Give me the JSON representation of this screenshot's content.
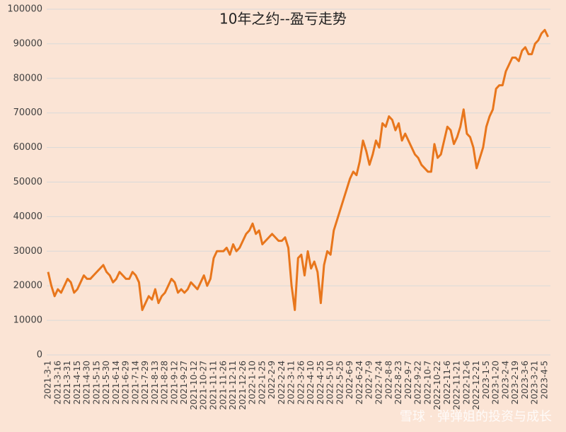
{
  "chart_data": {
    "type": "line",
    "title": "10年之约--盈亏走势",
    "watermark": "雪球 · 弹弹姐的投资与成长",
    "categories": [
      "2021-3-1",
      null,
      null,
      "2021-3-16",
      null,
      null,
      "2021-3-31",
      null,
      null,
      "2021-4-15",
      null,
      null,
      "2021-4-30",
      null,
      null,
      "2021-5-15",
      null,
      null,
      "2021-5-30",
      null,
      null,
      "2021-6-14",
      null,
      null,
      "2021-6-29",
      null,
      null,
      "2021-7-14",
      null,
      null,
      "2021-7-29",
      null,
      null,
      "2021-8-13",
      null,
      null,
      "2021-8-28",
      null,
      null,
      "2021-9-12",
      null,
      null,
      "2021-9-27",
      null,
      null,
      "2021-10-12",
      null,
      null,
      "2021-10-27",
      null,
      null,
      "2021-11-11",
      null,
      null,
      "2021-11-26",
      null,
      null,
      "2021-12-11",
      null,
      null,
      "2021-12-26",
      null,
      null,
      "2022-1-10",
      null,
      null,
      "2022-1-25",
      null,
      null,
      "2022-2-9",
      null,
      null,
      "2022-2-24",
      null,
      null,
      "2022-3-11",
      null,
      null,
      "2022-3-26",
      null,
      null,
      "2022-4-10",
      null,
      null,
      "2022-4-25",
      null,
      null,
      "2022-5-10",
      null,
      null,
      "2022-5-25",
      null,
      null,
      "2022-6-9",
      null,
      null,
      "2022-6-24",
      null,
      null,
      "2022-7-9",
      null,
      null,
      "2022-7-24",
      null,
      null,
      "2022-8-8",
      null,
      null,
      "2022-8-23",
      null,
      null,
      "2022-9-7",
      null,
      null,
      "2022-9-22",
      null,
      null,
      "2022-10-7",
      null,
      null,
      "2022-10-22",
      null,
      null,
      "2022-11-6",
      null,
      null,
      "2022-11-21",
      null,
      null,
      "2022-12-6",
      null,
      null,
      "2022-12-21",
      null,
      null,
      "2023-1-5",
      null,
      null,
      "2023-1-20",
      null,
      null,
      "2023-2-4",
      null,
      null,
      "2023-2-19",
      null,
      null,
      "2023-3-6",
      null,
      null,
      "2023-3-21",
      null,
      null,
      "2023-4-5",
      null
    ],
    "series": [
      {
        "color": "#e8761c",
        "values": [
          24000,
          20000,
          17000,
          19000,
          18000,
          20000,
          22000,
          21000,
          18000,
          19000,
          21000,
          23000,
          22000,
          22000,
          23000,
          24000,
          25000,
          26000,
          24000,
          23000,
          21000,
          22000,
          24000,
          23000,
          22000,
          22000,
          24000,
          23000,
          21000,
          13000,
          15000,
          17000,
          16000,
          19000,
          15000,
          17000,
          18000,
          20000,
          22000,
          21000,
          18000,
          19000,
          18000,
          19000,
          21000,
          20000,
          19000,
          21000,
          23000,
          20000,
          22000,
          28000,
          30000,
          30000,
          30000,
          31000,
          29000,
          32000,
          30000,
          31000,
          33000,
          35000,
          36000,
          38000,
          35000,
          36000,
          32000,
          33000,
          34000,
          35000,
          34000,
          33000,
          33000,
          34000,
          31000,
          20000,
          13000,
          28000,
          29000,
          23000,
          30000,
          25000,
          27000,
          24000,
          15000,
          26000,
          30000,
          29000,
          36000,
          39000,
          42000,
          45000,
          48000,
          51000,
          53000,
          52000,
          56000,
          62000,
          59000,
          55000,
          58000,
          62000,
          60000,
          67000,
          66000,
          69000,
          68000,
          65000,
          67000,
          62000,
          64000,
          62000,
          60000,
          58000,
          57000,
          55000,
          54000,
          53000,
          53000,
          61000,
          57000,
          58000,
          62000,
          66000,
          65000,
          61000,
          63000,
          66000,
          71000,
          64000,
          63000,
          60000,
          54000,
          57000,
          60000,
          66000,
          69000,
          71000,
          77000,
          78000,
          78000,
          82000,
          84000,
          86000,
          86000,
          85000,
          88000,
          89000,
          87000,
          87000,
          90000,
          91000,
          93000,
          94000,
          92000
        ]
      }
    ],
    "ylim": [
      0,
      100000
    ],
    "yticks": [
      0,
      10000,
      20000,
      30000,
      40000,
      50000,
      60000,
      70000,
      80000,
      90000,
      100000
    ],
    "grid": true
  }
}
